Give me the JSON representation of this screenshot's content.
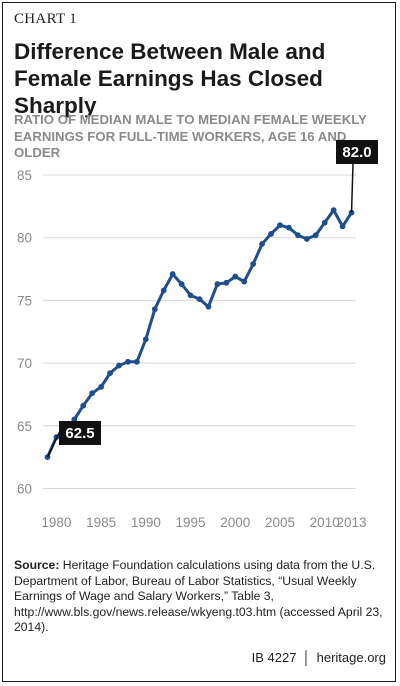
{
  "chart_label": "CHART 1",
  "title": "Difference Between Male and Female Earnings Has Closed Sharply",
  "source": {
    "label": "Source:",
    "text": "Heritage Foundation calculations using data from the U.S. Department of Labor, Bureau of Labor Statistics, “Usual Weekly Earnings of Wage and Salary Workers,” Table 3, http://www.bls.gov/news.release/wkyeng.t03.htm (accessed April 23, 2014)."
  },
  "footer": {
    "code": "IB 4227",
    "site": "heritage.org"
  },
  "colors": {
    "line": "#1f4e8c",
    "grid": "#d9d9d9",
    "callout_bg": "#111111",
    "subtitle": "#8a8a8a"
  },
  "chart_data": {
    "type": "line",
    "subtitle": "RATIO OF MEDIAN MALE TO MEDIAN FEMALE WEEKLY EARNINGS FOR FULL-TIME WORKERS, AGE 16 AND OLDER",
    "x": [
      1979,
      1980,
      1981,
      1982,
      1983,
      1984,
      1985,
      1986,
      1987,
      1988,
      1989,
      1990,
      1991,
      1992,
      1993,
      1994,
      1995,
      1996,
      1997,
      1998,
      1999,
      2000,
      2001,
      2002,
      2003,
      2004,
      2005,
      2006,
      2007,
      2008,
      2009,
      2010,
      2011,
      2012,
      2013
    ],
    "values": [
      62.5,
      64.1,
      64.4,
      65.5,
      66.6,
      67.6,
      68.1,
      69.2,
      69.8,
      70.1,
      70.1,
      71.9,
      74.3,
      75.8,
      77.1,
      76.3,
      75.4,
      75.1,
      74.5,
      76.3,
      76.4,
      76.9,
      76.5,
      77.9,
      79.5,
      80.3,
      81.0,
      80.8,
      80.2,
      79.9,
      80.2,
      81.2,
      82.2,
      80.9,
      82.0
    ],
    "xlim": [
      1978.5,
      2013.5
    ],
    "ylim": [
      59,
      85
    ],
    "xticks": [
      1980,
      1985,
      1990,
      1995,
      2000,
      2005,
      2010,
      2013
    ],
    "yticks": [
      60,
      65,
      70,
      75,
      80,
      85
    ],
    "grid": true,
    "callouts": [
      {
        "label": "62.5",
        "x": 1979,
        "y": 62.5
      },
      {
        "label": "82.0",
        "x": 2013,
        "y": 82.0
      }
    ]
  }
}
